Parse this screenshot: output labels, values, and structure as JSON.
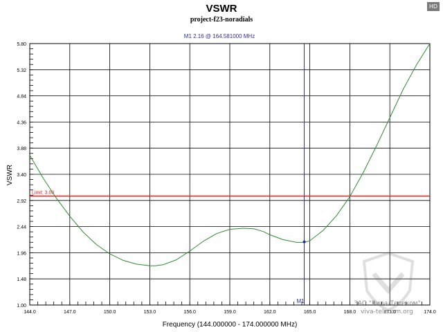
{
  "badge": "HD",
  "watermark": {
    "line1": "ЗАО \"Вира-Телеком\"",
    "line2": "viva-telecom.org"
  },
  "chart_data": {
    "type": "line",
    "title": "VSWR",
    "subtitle": "project-f23-noradials",
    "xlabel": "Frequency (144.000000 - 174.000000 MHz)",
    "ylabel": "VSWR",
    "xlim": [
      144,
      174
    ],
    "ylim": [
      1.0,
      5.8
    ],
    "xticks": [
      "144.0",
      "147.0",
      "150.0",
      "153.0",
      "156.0",
      "159.0",
      "162.0",
      "165.0",
      "168.0",
      "171.0",
      "174.0"
    ],
    "yticks": [
      "1.00",
      "1.48",
      "1.96",
      "2.44",
      "2.92",
      "3.40",
      "3.88",
      "4.36",
      "4.84",
      "5.32",
      "5.80"
    ],
    "grid": true,
    "series": [
      {
        "color": "#2e8b2e",
        "x": [
          144,
          145,
          146,
          147,
          148,
          149,
          150,
          151,
          152,
          152.7,
          153,
          153.4,
          154,
          155,
          156,
          157,
          158,
          159,
          160,
          160.8,
          161.5,
          162,
          163,
          164,
          164.6,
          165,
          166,
          167,
          168,
          169,
          170,
          171,
          172,
          173,
          174
        ],
        "y": [
          3.75,
          3.33,
          2.96,
          2.63,
          2.34,
          2.11,
          1.94,
          1.82,
          1.75,
          1.73,
          1.72,
          1.72,
          1.74,
          1.83,
          1.99,
          2.17,
          2.31,
          2.39,
          2.41,
          2.4,
          2.35,
          2.29,
          2.2,
          2.15,
          2.15,
          2.18,
          2.37,
          2.64,
          2.99,
          3.43,
          3.92,
          4.44,
          4.96,
          5.41,
          5.8
        ]
      }
    ],
    "limit": {
      "label": "Limit: 3.00",
      "value": 3.0,
      "color": "#e02020"
    },
    "marker": {
      "name": "M1",
      "readout": "M1  2.16 @ 164.581000 MHz",
      "x": 164.581,
      "y": 2.16,
      "color": "#2a2aa8"
    }
  }
}
